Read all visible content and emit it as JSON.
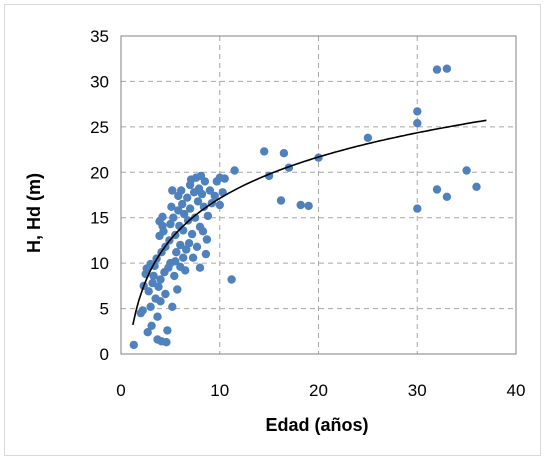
{
  "chart_data": {
    "type": "scatter",
    "title": "",
    "xlabel": "Edad (años)",
    "ylabel": "H, Hd (m)",
    "xlim": [
      0,
      40
    ],
    "ylim": [
      0,
      35
    ],
    "xticks": [
      "0",
      "10",
      "20",
      "30",
      "40"
    ],
    "yticks": [
      "0",
      "5",
      "10",
      "15",
      "20",
      "25",
      "30",
      "35"
    ],
    "grid": true,
    "legend": "none",
    "colors": {
      "marker": "#4f81bd",
      "trendline": "#000000",
      "grid": "#a6a6a6",
      "plot_border": "#808080"
    },
    "series": [
      {
        "points": [
          [
            1.3,
            1.0
          ],
          [
            2.0,
            4.5
          ],
          [
            2.2,
            4.8
          ],
          [
            2.3,
            7.5
          ],
          [
            2.5,
            8.8
          ],
          [
            2.6,
            9.4
          ],
          [
            2.7,
            2.4
          ],
          [
            2.8,
            6.9
          ],
          [
            3.0,
            5.2
          ],
          [
            3.0,
            9.9
          ],
          [
            3.1,
            3.1
          ],
          [
            3.2,
            7.8
          ],
          [
            3.3,
            8.6
          ],
          [
            3.4,
            9.7
          ],
          [
            3.5,
            6.1
          ],
          [
            3.6,
            10.5
          ],
          [
            3.7,
            4.1
          ],
          [
            3.7,
            1.6
          ],
          [
            3.8,
            7.4
          ],
          [
            3.9,
            13.0
          ],
          [
            3.9,
            14.6
          ],
          [
            4.0,
            5.8
          ],
          [
            4.0,
            8.2
          ],
          [
            4.1,
            1.4
          ],
          [
            4.1,
            11.2
          ],
          [
            4.2,
            14.1
          ],
          [
            4.2,
            15.1
          ],
          [
            4.3,
            13.5
          ],
          [
            4.4,
            9.0
          ],
          [
            4.5,
            6.6
          ],
          [
            4.5,
            11.8
          ],
          [
            4.6,
            1.3
          ],
          [
            4.7,
            2.6
          ],
          [
            4.8,
            9.5
          ],
          [
            4.9,
            12.5
          ],
          [
            5.0,
            10.0
          ],
          [
            5.0,
            14.3
          ],
          [
            5.1,
            16.2
          ],
          [
            5.2,
            18.0
          ],
          [
            5.2,
            5.2
          ],
          [
            5.3,
            15.0
          ],
          [
            5.4,
            8.6
          ],
          [
            5.5,
            10.2
          ],
          [
            5.5,
            13.1
          ],
          [
            5.6,
            11.2
          ],
          [
            5.7,
            7.1
          ],
          [
            5.8,
            15.8
          ],
          [
            5.8,
            17.4
          ],
          [
            5.9,
            14.1
          ],
          [
            6.0,
            9.6
          ],
          [
            6.0,
            12.0
          ],
          [
            6.1,
            18.0
          ],
          [
            6.2,
            16.5
          ],
          [
            6.3,
            10.6
          ],
          [
            6.3,
            13.6
          ],
          [
            6.4,
            15.4
          ],
          [
            6.5,
            9.2
          ],
          [
            6.6,
            11.5
          ],
          [
            6.7,
            17.2
          ],
          [
            6.8,
            14.7
          ],
          [
            6.9,
            12.2
          ],
          [
            7.0,
            16.0
          ],
          [
            7.0,
            18.6
          ],
          [
            7.1,
            19.2
          ],
          [
            7.2,
            13.2
          ],
          [
            7.3,
            10.6
          ],
          [
            7.4,
            17.8
          ],
          [
            7.5,
            15.0
          ],
          [
            7.6,
            19.4
          ],
          [
            7.7,
            11.8
          ],
          [
            7.8,
            16.8
          ],
          [
            7.9,
            18.2
          ],
          [
            8.0,
            9.5
          ],
          [
            8.0,
            14.0
          ],
          [
            8.1,
            19.6
          ],
          [
            8.2,
            17.6
          ],
          [
            8.3,
            13.5
          ],
          [
            8.4,
            16.2
          ],
          [
            8.5,
            19.0
          ],
          [
            8.6,
            11.0
          ],
          [
            8.7,
            12.6
          ],
          [
            8.8,
            15.2
          ],
          [
            9.0,
            18.0
          ],
          [
            9.2,
            16.6
          ],
          [
            9.5,
            17.4
          ],
          [
            9.7,
            19.0
          ],
          [
            10.0,
            16.4
          ],
          [
            10.0,
            19.4
          ],
          [
            10.3,
            17.8
          ],
          [
            10.5,
            19.3
          ],
          [
            11.2,
            8.2
          ],
          [
            11.5,
            20.2
          ],
          [
            14.5,
            22.3
          ],
          [
            15.0,
            19.6
          ],
          [
            16.2,
            16.9
          ],
          [
            16.5,
            22.1
          ],
          [
            17.0,
            20.5
          ],
          [
            18.2,
            16.4
          ],
          [
            19.0,
            16.3
          ],
          [
            20.0,
            21.6
          ],
          [
            25.0,
            23.8
          ],
          [
            30.0,
            16.0
          ],
          [
            30.0,
            25.4
          ],
          [
            30.0,
            26.7
          ],
          [
            32.0,
            18.1
          ],
          [
            32.0,
            31.3
          ],
          [
            33.0,
            17.3
          ],
          [
            33.0,
            31.4
          ],
          [
            35.0,
            20.2
          ],
          [
            36.0,
            18.4
          ]
        ]
      }
    ],
    "trendline": {
      "type": "logarithmic",
      "a": 2.0,
      "b": 6.57,
      "x_range": [
        1.2,
        37.0
      ]
    }
  }
}
